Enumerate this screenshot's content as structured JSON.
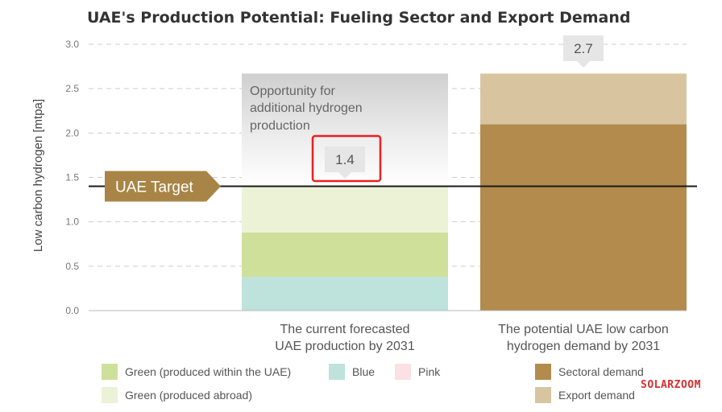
{
  "chart_data": {
    "type": "bar",
    "title": "UAE's Production Potential: Fueling Sector and Export Demand",
    "ylabel": "Low carbon hydrogen [mtpa]",
    "ylim": [
      0,
      3.0
    ],
    "yticks": [
      "0.0",
      "0.5",
      "1.0",
      "1.5",
      "2.0",
      "2.5",
      "3.0"
    ],
    "grid": "dashed horizontal",
    "categories": [
      [
        "The current forecasted",
        "UAE production by 2031"
      ],
      [
        "The potential UAE low carbon",
        "hydrogen demand by 2031"
      ]
    ],
    "stacks": [
      {
        "category_index": 0,
        "segments": [
          {
            "legend_index": 1,
            "value": 0.38
          },
          {
            "legend_index": 0,
            "value": 0.5
          },
          {
            "legend_index": 3,
            "value": 0.52
          }
        ],
        "total_label": "1.4",
        "opportunity_band_top": 2.67
      },
      {
        "category_index": 1,
        "segments": [
          {
            "legend_index": 4,
            "value": 2.1
          },
          {
            "legend_index": 5,
            "value": 0.57
          }
        ],
        "total_label": "2.7"
      }
    ],
    "opportunity_label": [
      "Opportunity for",
      "additional hydrogen",
      "production"
    ],
    "target": {
      "label": "UAE Target",
      "value": 1.4
    },
    "legend": [
      {
        "name": "Green (produced within the UAE)",
        "color": "#cfe09b"
      },
      {
        "name": "Blue",
        "color": "#bde3dc"
      },
      {
        "name": "Pink",
        "color": "#fbe1e4"
      },
      {
        "name": "Green (produced abroad)",
        "color": "#ecf2d6"
      },
      {
        "name": "Sectoral demand",
        "color": "#b38b4d"
      },
      {
        "name": "Export demand",
        "color": "#d8c5a0"
      }
    ],
    "target_color": "#a88546"
  },
  "watermark": "SOLARZOOM"
}
